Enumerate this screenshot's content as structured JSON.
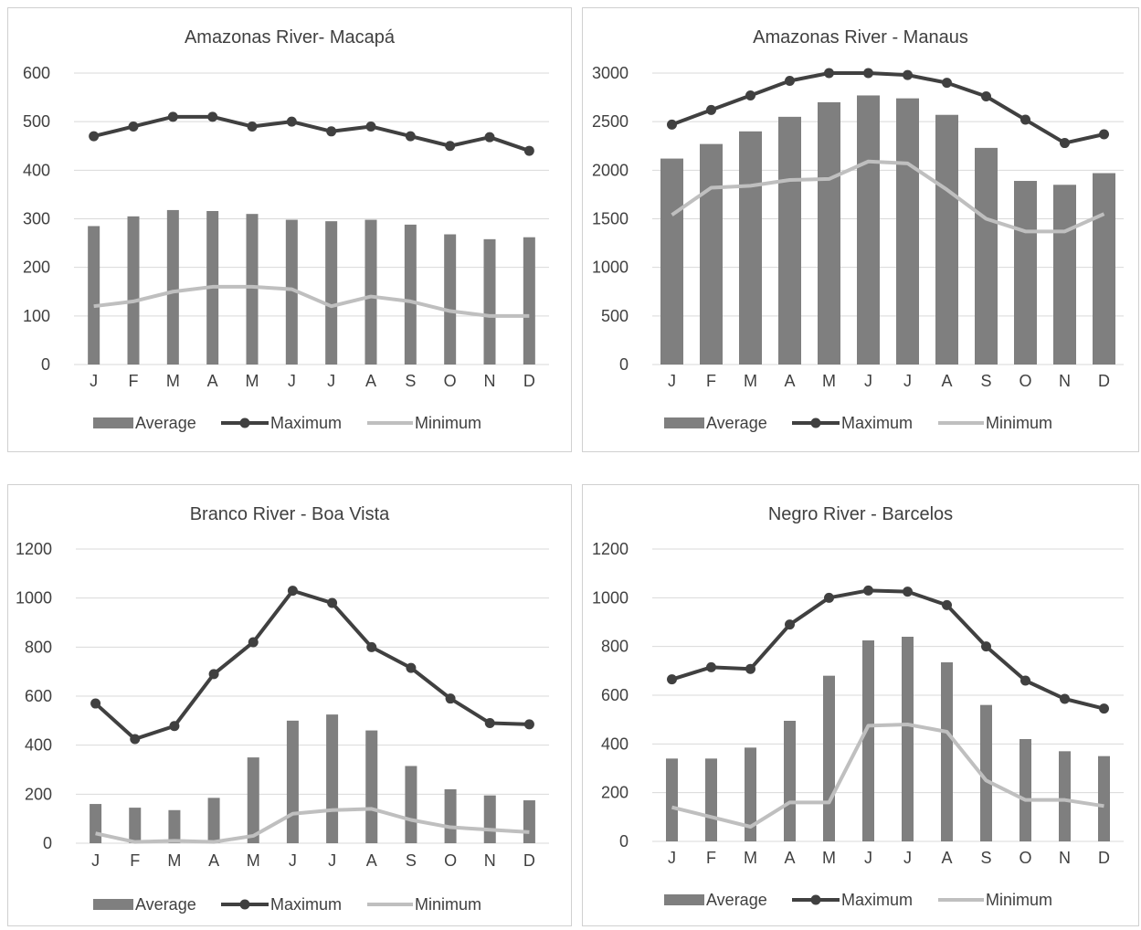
{
  "colors": {
    "average": "#7f7f7f",
    "maximum": "#404040",
    "minimum": "#bfbfbf"
  },
  "chart_data": [
    {
      "type": "bar",
      "title": "Amazonas River- Macapá",
      "categories": [
        "J",
        "F",
        "M",
        "A",
        "M",
        "J",
        "J",
        "A",
        "S",
        "O",
        "N",
        "D"
      ],
      "ylim": [
        0,
        600
      ],
      "yticks": [
        "0",
        "100",
        "200",
        "300",
        "400",
        "500",
        "600"
      ],
      "grid": true,
      "legend_position": "bottom",
      "series": [
        {
          "name": "Average",
          "type": "bar",
          "values": [
            285,
            305,
            318,
            316,
            310,
            298,
            295,
            298,
            288,
            268,
            258,
            262
          ]
        },
        {
          "name": "Maximum",
          "type": "line",
          "values": [
            470,
            490,
            510,
            510,
            490,
            500,
            480,
            490,
            470,
            450,
            468,
            440
          ]
        },
        {
          "name": "Minimum",
          "type": "line",
          "values": [
            120,
            130,
            150,
            160,
            160,
            155,
            120,
            140,
            130,
            110,
            100,
            100
          ]
        }
      ]
    },
    {
      "type": "bar",
      "title": "Amazonas River - Manaus",
      "categories": [
        "J",
        "F",
        "M",
        "A",
        "M",
        "J",
        "J",
        "A",
        "S",
        "O",
        "N",
        "D"
      ],
      "ylim": [
        0,
        3000
      ],
      "yticks": [
        "0",
        "500",
        "1000",
        "1500",
        "2000",
        "2500",
        "3000"
      ],
      "grid": true,
      "legend_position": "bottom",
      "series": [
        {
          "name": "Average",
          "type": "bar",
          "values": [
            2120,
            2270,
            2400,
            2550,
            2700,
            2770,
            2740,
            2570,
            2230,
            1890,
            1850,
            1970
          ]
        },
        {
          "name": "Maximum",
          "type": "line",
          "values": [
            2470,
            2620,
            2770,
            2920,
            3000,
            3000,
            2980,
            2900,
            2760,
            2520,
            2280,
            2370
          ]
        },
        {
          "name": "Minimum",
          "type": "line",
          "values": [
            1540,
            1820,
            1840,
            1900,
            1910,
            2090,
            2070,
            1800,
            1500,
            1370,
            1370,
            1550
          ]
        }
      ]
    },
    {
      "type": "bar",
      "title": "Branco River - Boa Vista",
      "categories": [
        "J",
        "F",
        "M",
        "A",
        "M",
        "J",
        "J",
        "A",
        "S",
        "O",
        "N",
        "D"
      ],
      "ylim": [
        0,
        1200
      ],
      "yticks": [
        "0",
        "200",
        "400",
        "600",
        "800",
        "1000",
        "1200"
      ],
      "grid": true,
      "legend_position": "bottom",
      "series": [
        {
          "name": "Average",
          "type": "bar",
          "values": [
            160,
            145,
            135,
            185,
            350,
            500,
            525,
            460,
            315,
            220,
            195,
            175
          ]
        },
        {
          "name": "Maximum",
          "type": "line",
          "values": [
            570,
            425,
            478,
            690,
            820,
            1030,
            980,
            800,
            715,
            590,
            490,
            485
          ]
        },
        {
          "name": "Minimum",
          "type": "line",
          "values": [
            40,
            5,
            10,
            5,
            30,
            120,
            135,
            140,
            95,
            65,
            55,
            45
          ]
        }
      ]
    },
    {
      "type": "bar",
      "title": "Negro River - Barcelos",
      "categories": [
        "J",
        "F",
        "M",
        "A",
        "M",
        "J",
        "J",
        "A",
        "S",
        "O",
        "N",
        "D"
      ],
      "ylim": [
        0,
        1200
      ],
      "yticks": [
        "0",
        "200",
        "400",
        "600",
        "800",
        "1000",
        "1200"
      ],
      "grid": true,
      "legend_position": "bottom",
      "series": [
        {
          "name": "Average",
          "type": "bar",
          "values": [
            340,
            340,
            385,
            495,
            680,
            825,
            840,
            735,
            560,
            420,
            370,
            350
          ]
        },
        {
          "name": "Maximum",
          "type": "line",
          "values": [
            665,
            715,
            708,
            890,
            1000,
            1030,
            1025,
            970,
            800,
            660,
            585,
            545
          ]
        },
        {
          "name": "Minimum",
          "type": "line",
          "values": [
            140,
            100,
            60,
            160,
            160,
            475,
            480,
            450,
            250,
            170,
            170,
            145
          ]
        }
      ]
    }
  ]
}
